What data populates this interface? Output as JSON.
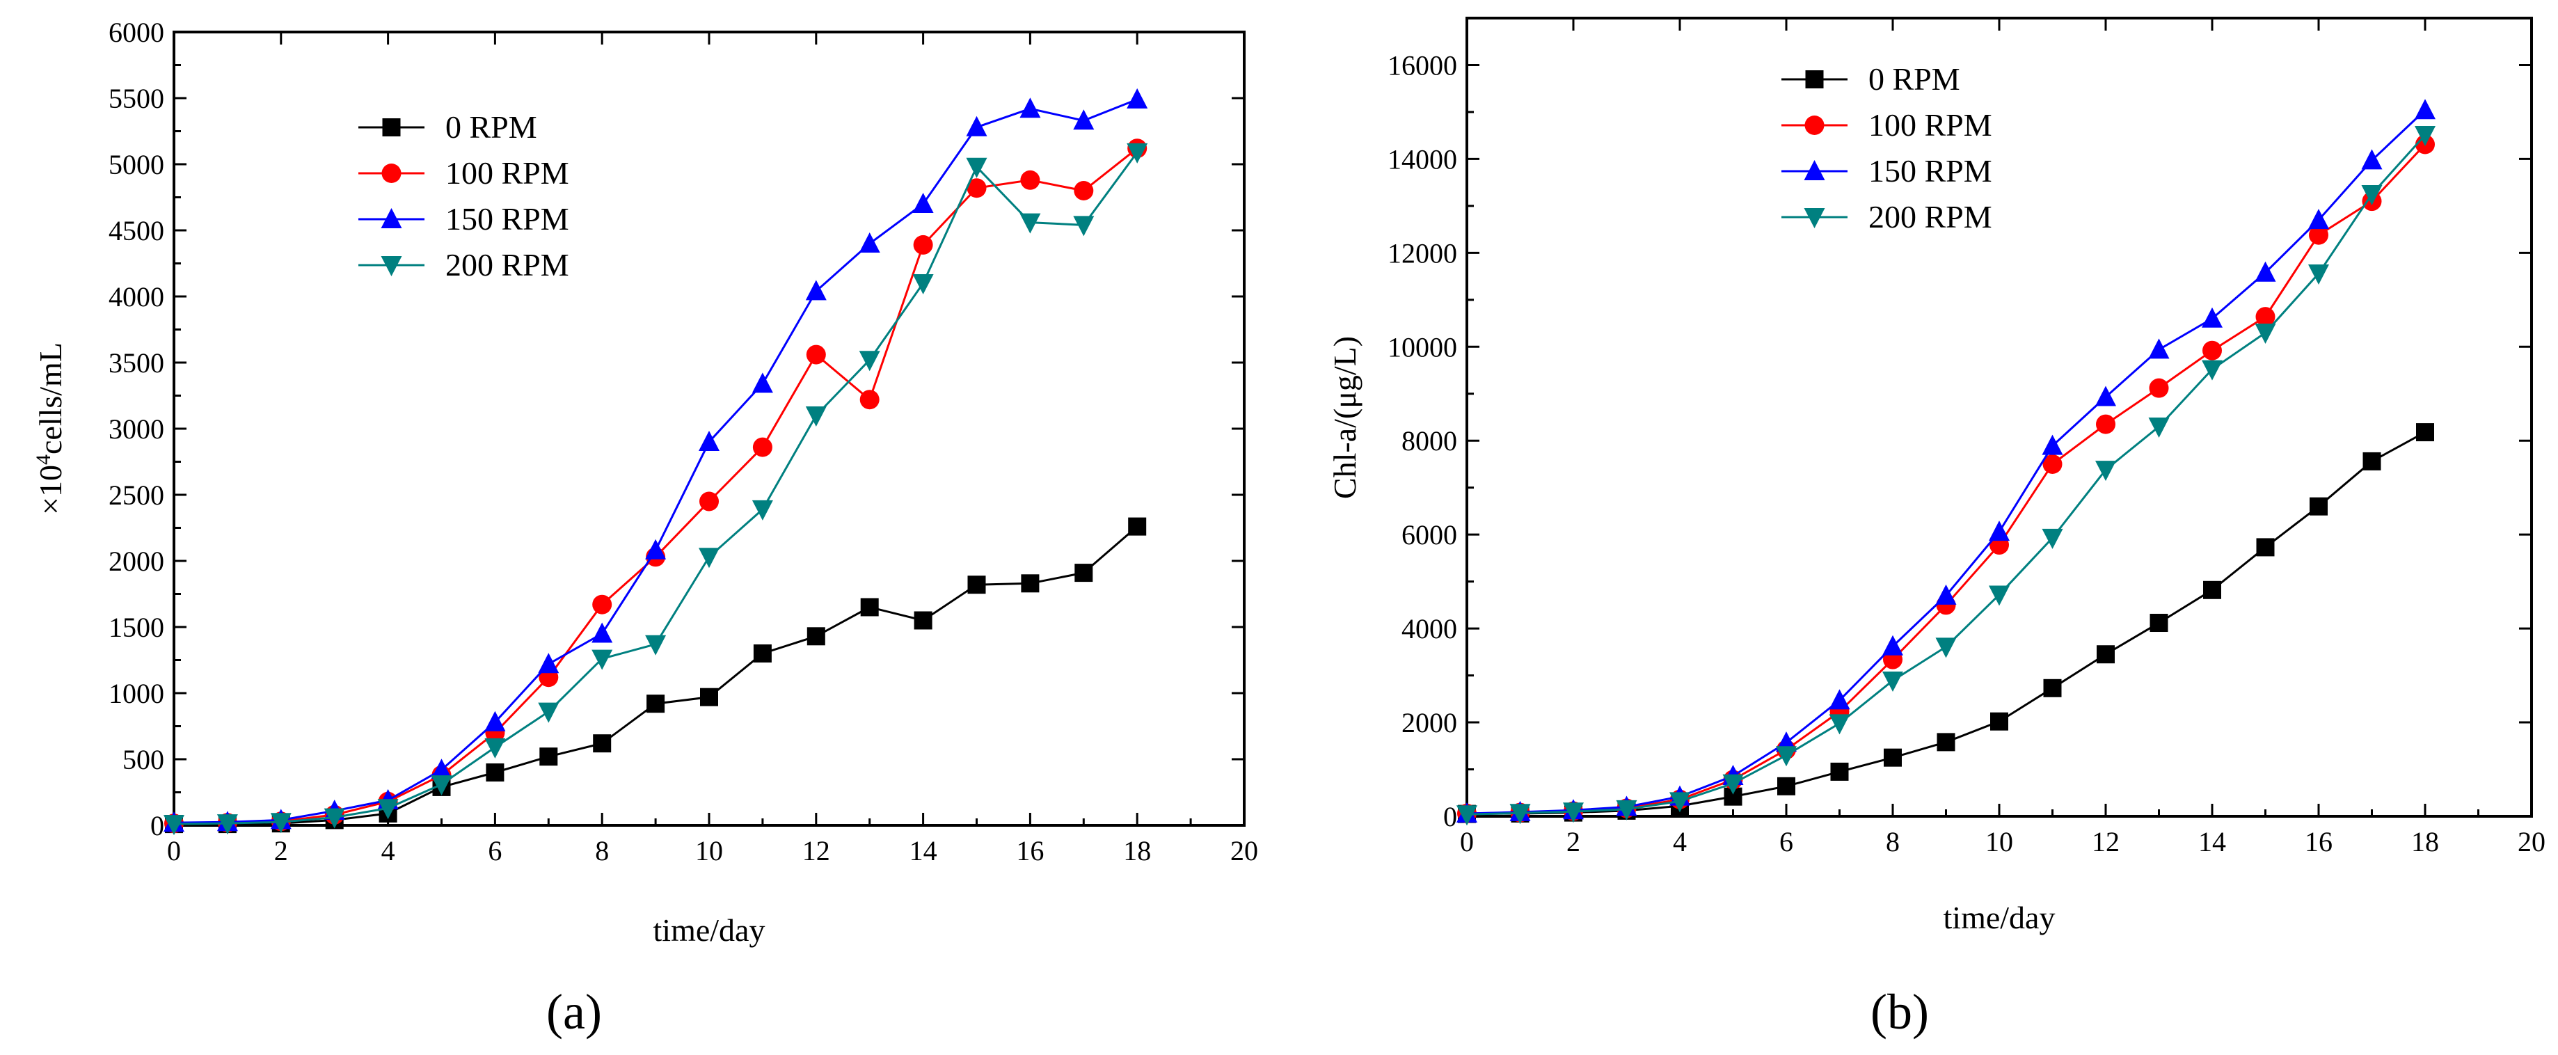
{
  "chart_data": [
    {
      "type": "line",
      "panel_label": "(a)",
      "xlabel": "time/day",
      "ylabel_prefix": "×10",
      "ylabel_sup": "4",
      "ylabel_suffix": "cells/mL",
      "xlim": [
        0,
        20
      ],
      "ylim": [
        0,
        6000
      ],
      "xticks": [
        0,
        2,
        4,
        6,
        8,
        10,
        12,
        14,
        16,
        18,
        20
      ],
      "yticks": [
        0,
        500,
        1000,
        1500,
        2000,
        2500,
        3000,
        3500,
        4000,
        4500,
        5000,
        5500,
        6000
      ],
      "legend_position": "upper-left",
      "x": [
        0,
        1,
        2,
        3,
        4,
        5,
        6,
        7,
        8,
        9,
        10,
        11,
        12,
        13,
        14,
        15,
        16,
        17,
        18
      ],
      "series": [
        {
          "name": "0 RPM",
          "color": "#000000",
          "marker": "square",
          "values": [
            10,
            10,
            15,
            40,
            90,
            290,
            400,
            520,
            620,
            920,
            970,
            1300,
            1430,
            1650,
            1550,
            1820,
            1830,
            1910,
            2260
          ]
        },
        {
          "name": "100 RPM",
          "color": "#ff0000",
          "marker": "circle",
          "values": [
            15,
            20,
            30,
            80,
            180,
            380,
            700,
            1120,
            1670,
            2030,
            2450,
            2860,
            3560,
            3220,
            4390,
            4820,
            4880,
            4800,
            5120
          ]
        },
        {
          "name": "150 RPM",
          "color": "#0000ff",
          "marker": "triangle-up",
          "values": [
            20,
            25,
            40,
            110,
            190,
            420,
            780,
            1220,
            1450,
            2080,
            2900,
            3340,
            4040,
            4400,
            4700,
            5280,
            5420,
            5330,
            5490
          ]
        },
        {
          "name": "200 RPM",
          "color": "#008080",
          "marker": "triangle-down",
          "values": [
            10,
            15,
            25,
            60,
            130,
            310,
            590,
            860,
            1260,
            1370,
            2030,
            2390,
            3100,
            3520,
            4100,
            4980,
            4560,
            4540,
            5090
          ]
        }
      ]
    },
    {
      "type": "line",
      "panel_label": "(b)",
      "xlabel": "time/day",
      "ylabel": "Chl-a/(μg/L)",
      "xlim": [
        0,
        20
      ],
      "ylim": [
        0,
        17000
      ],
      "xticks": [
        0,
        2,
        4,
        6,
        8,
        10,
        12,
        14,
        16,
        18,
        20
      ],
      "yticks": [
        0,
        2000,
        4000,
        6000,
        8000,
        10000,
        12000,
        14000,
        16000
      ],
      "legend_position": "upper-left",
      "x": [
        0,
        1,
        2,
        3,
        4,
        5,
        6,
        7,
        8,
        9,
        10,
        11,
        12,
        13,
        14,
        15,
        16,
        17,
        18
      ],
      "series": [
        {
          "name": "0 RPM",
          "color": "#000000",
          "marker": "square",
          "values": [
            50,
            60,
            80,
            120,
            220,
            420,
            640,
            950,
            1250,
            1580,
            2020,
            2730,
            3450,
            4120,
            4820,
            5730,
            6600,
            7560,
            8180
          ]
        },
        {
          "name": "100 RPM",
          "color": "#ff0000",
          "marker": "circle",
          "values": [
            60,
            80,
            110,
            170,
            360,
            780,
            1420,
            2230,
            3340,
            4500,
            5780,
            7500,
            8350,
            9120,
            9920,
            10640,
            12380,
            13100,
            14310
          ]
        },
        {
          "name": "150 RPM",
          "color": "#0000ff",
          "marker": "triangle-up",
          "values": [
            60,
            90,
            130,
            200,
            420,
            860,
            1570,
            2470,
            3620,
            4700,
            6060,
            7890,
            8930,
            9940,
            10600,
            11580,
            12700,
            13970,
            15040
          ]
        },
        {
          "name": "200 RPM",
          "color": "#008080",
          "marker": "triangle-down",
          "values": [
            40,
            70,
            100,
            150,
            320,
            700,
            1300,
            1980,
            2890,
            3610,
            4720,
            5930,
            7380,
            8300,
            9520,
            10300,
            11560,
            13250,
            14510
          ]
        }
      ]
    }
  ]
}
